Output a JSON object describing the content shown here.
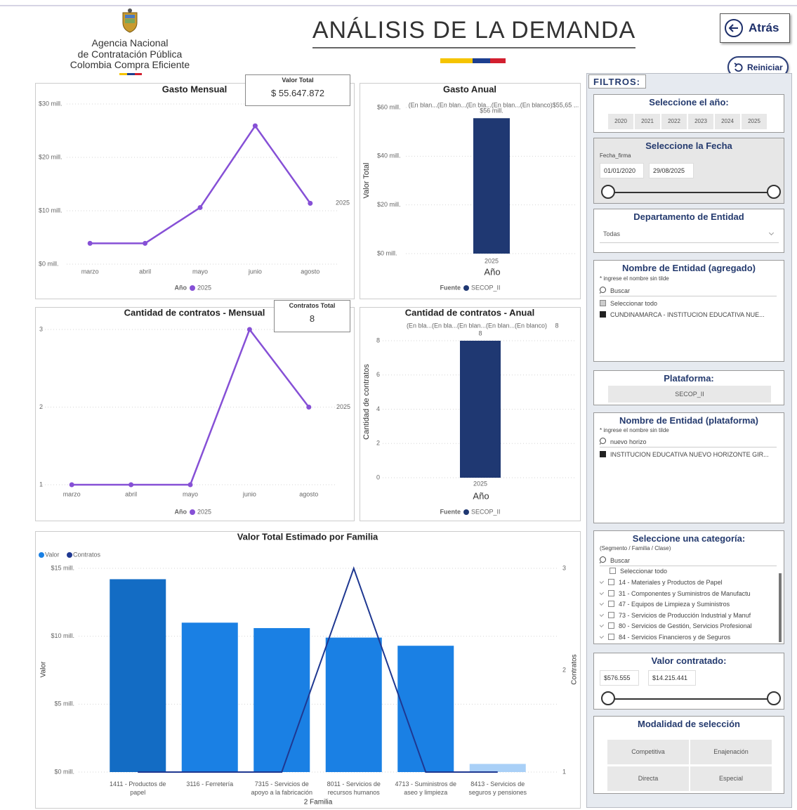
{
  "header": {
    "logo_lines": [
      "Agencia Nacional",
      "de Contratación Pública",
      "Colombia Compra Eficiente"
    ],
    "title": "ANÁLISIS DE LA DEMANDA",
    "back_button": "Atrás",
    "reset_button": "Reiniciar"
  },
  "cards": [
    {
      "label": "Valor Total",
      "value": "$ 55.647.872"
    },
    {
      "label": "Contratos Total",
      "value": "8"
    }
  ],
  "chart_data": [
    {
      "type": "line",
      "title": "Gasto Mensual",
      "categories": [
        "marzo",
        "abril",
        "mayo",
        "junio",
        "agosto"
      ],
      "series": [
        {
          "name": "2025",
          "color": "#8650d6",
          "values": [
            3.9,
            3.9,
            10.6,
            25.9,
            11.4
          ]
        }
      ],
      "legend_title": "Año",
      "grid": true,
      "ylim": [
        0,
        30
      ],
      "yticks": [
        {
          "value": 0,
          "label": "$0 mill."
        },
        {
          "value": 10,
          "label": "$10 mill."
        },
        {
          "value": 20,
          "label": "$20 mill."
        },
        {
          "value": 30,
          "label": "$30 mill."
        }
      ]
    },
    {
      "type": "bar",
      "title": "Gasto Anual",
      "categories": [
        "2025"
      ],
      "series": [
        {
          "name": "SECOP_II",
          "color": "#1f3872",
          "values": [
            55.6
          ],
          "value_labels": [
            "$56 mill."
          ]
        }
      ],
      "annotation": "(En blan...(En blan...(En bla...(En blan...(En blanco)$55,65 ...",
      "xlabel": "Año",
      "ylabel": "Valor Total",
      "legend_title": "Fuente",
      "grid": true,
      "ylim": [
        0,
        60
      ],
      "yticks": [
        {
          "value": 0,
          "label": "$0 mill."
        },
        {
          "value": 20,
          "label": "$20 mill."
        },
        {
          "value": 40,
          "label": "$40 mill."
        },
        {
          "value": 60,
          "label": "$60 mill."
        }
      ]
    },
    {
      "type": "line",
      "title": "Cantidad de contratos - Mensual",
      "categories": [
        "marzo",
        "abril",
        "mayo",
        "junio",
        "agosto"
      ],
      "series": [
        {
          "name": "2025",
          "color": "#8650d6",
          "values": [
            1,
            1,
            1,
            3,
            2
          ]
        }
      ],
      "legend_title": "Año",
      "grid": true,
      "ylim": [
        1,
        3
      ],
      "yticks": [
        1,
        2,
        3
      ]
    },
    {
      "type": "bar",
      "title": "Cantidad de contratos - Anual",
      "categories": [
        "2025"
      ],
      "series": [
        {
          "name": "SECOP_II",
          "color": "#1f3872",
          "values": [
            8
          ]
        }
      ],
      "annotation": "(En bla...(En bla...(En blan...(En blan...(En blanco)",
      "annotation_end": "8",
      "xlabel": "Año",
      "ylabel": "Cantidad de contratos",
      "legend_title": "Fuente",
      "grid": true,
      "ylim": [
        0,
        8
      ],
      "yticks": [
        0,
        2,
        4,
        6,
        8
      ]
    },
    {
      "type": "bar",
      "title": "Valor Total Estimado por Familia",
      "categories": [
        "1411 - Productos de papel",
        "3116 - Ferretería",
        "7315 - Servicios de apoyo a la fabricación",
        "8011 - Servicios de recursos humanos",
        "4713 - Suministros de aseo y limpieza",
        "8413 - Servicios de seguros y pensiones"
      ],
      "series": [
        {
          "name": "Valor",
          "color": "#1a80e4",
          "colors": [
            "#136cc4",
            "#1a80e4",
            "#1a80e4",
            "#1a80e4",
            "#1a80e4",
            "#a9d0f7"
          ],
          "values": [
            14.2,
            11.0,
            10.6,
            9.9,
            9.3,
            0.6
          ]
        },
        {
          "name": "Contratos",
          "type": "line",
          "axis": "y2",
          "color": "#1f3891",
          "values": [
            1,
            1,
            1,
            3,
            1,
            1
          ]
        }
      ],
      "xlabel": "2 Familia",
      "ylabel": "Valor",
      "y2label": "Contratos",
      "grid": true,
      "ylim": [
        0,
        15
      ],
      "yticks": [
        {
          "value": 0,
          "label": "$0 mill."
        },
        {
          "value": 5,
          "label": "$5 mill."
        },
        {
          "value": 10,
          "label": "$10 mill."
        },
        {
          "value": 15,
          "label": "$15 mill."
        }
      ],
      "y2lim": [
        1,
        3
      ],
      "y2ticks": [
        1,
        2,
        3
      ]
    }
  ],
  "filters": {
    "label": "FILTROS:",
    "year": {
      "title": "Seleccione el año:",
      "options": [
        "2020",
        "2021",
        "2022",
        "2023",
        "2024",
        "2025"
      ]
    },
    "date": {
      "title": "Seleccione la Fecha",
      "field": "Fecha_firma",
      "start": "01/01/2020",
      "end": "29/08/2025"
    },
    "department": {
      "title": "Departamento de Entidad",
      "selected": "Todas"
    },
    "entity_aggregated": {
      "title": "Nombre de Entidad (agregado)",
      "hint": "* ingrese el nombre sin tilde",
      "search": "Buscar",
      "select_all": "Seleccionar todo",
      "items": [
        "CUNDINAMARCA - INSTITUCION EDUCATIVA NUE..."
      ]
    },
    "platform": {
      "title": "Plataforma:",
      "options": [
        "SECOP_II"
      ]
    },
    "entity_platform": {
      "title": "Nombre de Entidad (plataforma)",
      "hint": "* ingrese el nombre sin tilde",
      "search": "nuevo horizo",
      "items": [
        "INSTITUCION EDUCATIVA NUEVO HORIZONTE GIR..."
      ]
    },
    "category": {
      "title": "Seleccione una categoría:",
      "subtitle": "(Segmento / Familia / Clase)",
      "search": "Buscar",
      "select_all": "Seleccionar todo",
      "items": [
        "14 - Materiales y Productos de Papel",
        "31 - Componentes y Suministros de Manufactu",
        "47 - Equipos de Limpieza y Suministros",
        "73 - Servicios de Producción Industrial y Manuf",
        "80 - Servicios de Gestión, Servicios Profesional",
        "84 - Servicios Financieros y de Seguros"
      ]
    },
    "value": {
      "title": "Valor contratado:",
      "min": "$576.555",
      "max": "$14.215.441"
    },
    "modality": {
      "title": "Modalidad de selección",
      "options": [
        "Competitiva",
        "Enajenación",
        "Directa",
        "Especial"
      ]
    }
  }
}
